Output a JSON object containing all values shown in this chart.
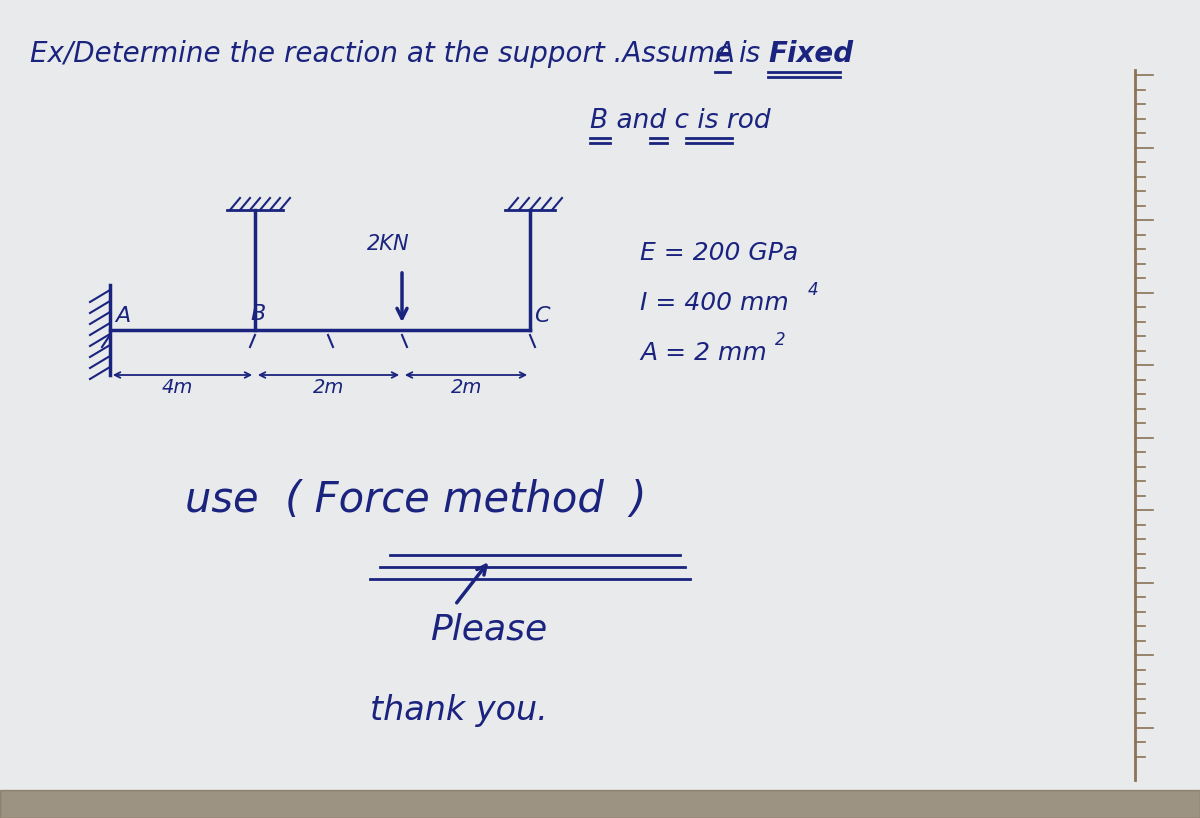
{
  "bg_color": "#e8eaec",
  "text_color": "#1a237e",
  "title1": "Ex/Determine the reaction at the support .Assume A is Fixed",
  "subtitle": "B and c is rod",
  "props_E": "E = 200 GPa",
  "props_I": "I = 400 mm",
  "props_I_exp": "4",
  "props_A": "A = 2 mm",
  "props_A_exp": "2",
  "method_text": "use  ( Force method  )",
  "please_text": "Please",
  "thanks_text": "thank you."
}
